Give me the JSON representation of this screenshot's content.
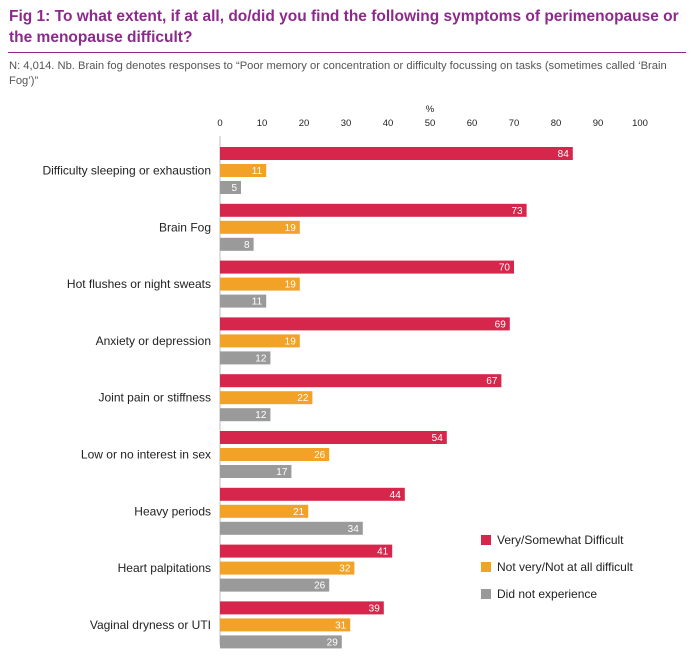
{
  "title": "Fig 1: To what extent, if at all, do/did you find the following symptoms of perimenopause or the menopause difficult?",
  "subtitle": "N: 4,014. Nb. Brain fog denotes responses to “Poor memory or concentration or difficulty focussing on tasks (sometimes called ‘Brain Fog’)”",
  "colors": {
    "title": "#8c2a8c",
    "difficult": "#d6264b",
    "not_difficult": "#f2a227",
    "did_not_experience": "#9a9a9a"
  },
  "chart_data": {
    "type": "bar",
    "orientation": "horizontal",
    "x_unit": "%",
    "xlim": [
      0,
      100
    ],
    "x_ticks": [
      0,
      10,
      20,
      30,
      40,
      50,
      60,
      70,
      80,
      90,
      100
    ],
    "grid": false,
    "legend_position": "bottom-right",
    "categories": [
      "Difficulty sleeping or exhaustion",
      "Brain Fog",
      "Hot flushes or night sweats",
      "Anxiety or depression",
      "Joint pain or stiffness",
      "Low or no interest in sex",
      "Heavy periods",
      "Heart palpitations",
      "Vaginal dryness or UTI"
    ],
    "series": [
      {
        "name": "Very/Somewhat Difficult",
        "color": "#d6264b",
        "values": [
          84,
          73,
          70,
          69,
          67,
          54,
          44,
          41,
          39
        ]
      },
      {
        "name": "Not very/Not at all difficult",
        "color": "#f2a227",
        "values": [
          11,
          19,
          19,
          19,
          22,
          26,
          21,
          32,
          31
        ]
      },
      {
        "name": "Did not experience",
        "color": "#9a9a9a",
        "values": [
          5,
          8,
          11,
          12,
          12,
          17,
          34,
          26,
          29
        ]
      }
    ]
  }
}
